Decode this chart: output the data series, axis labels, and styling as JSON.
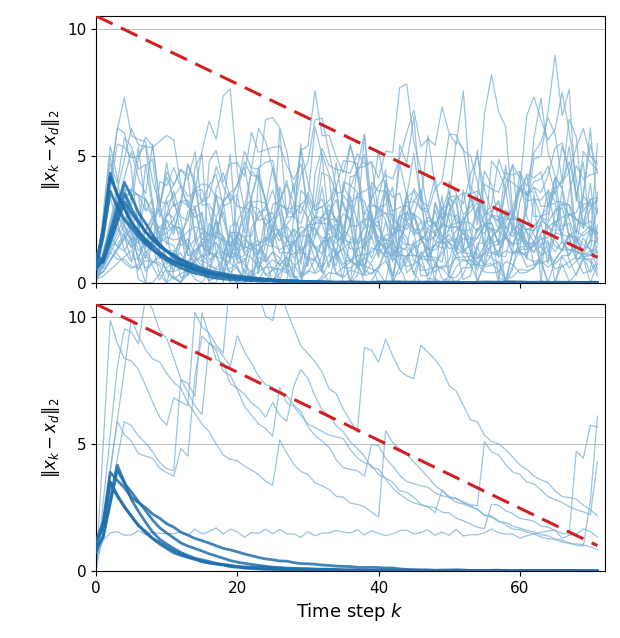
{
  "n_steps": 72,
  "decay_start": 10.5,
  "decay_end": 1.0,
  "red_line_color": "#cc2222",
  "light_blue_color": "#7ab0d4",
  "dark_blue_color": "#1f6fab",
  "background_color": "#ffffff",
  "grid_color": "#bbbbbb",
  "ylabel": "$\\|x_k - x_d\\|_2$",
  "xlabel": "Time step $k$",
  "ylim": [
    0,
    10.5
  ],
  "xlim": [
    0,
    72
  ],
  "xticks": [
    0,
    20,
    40,
    60
  ],
  "yticks": [
    0,
    5,
    10
  ]
}
